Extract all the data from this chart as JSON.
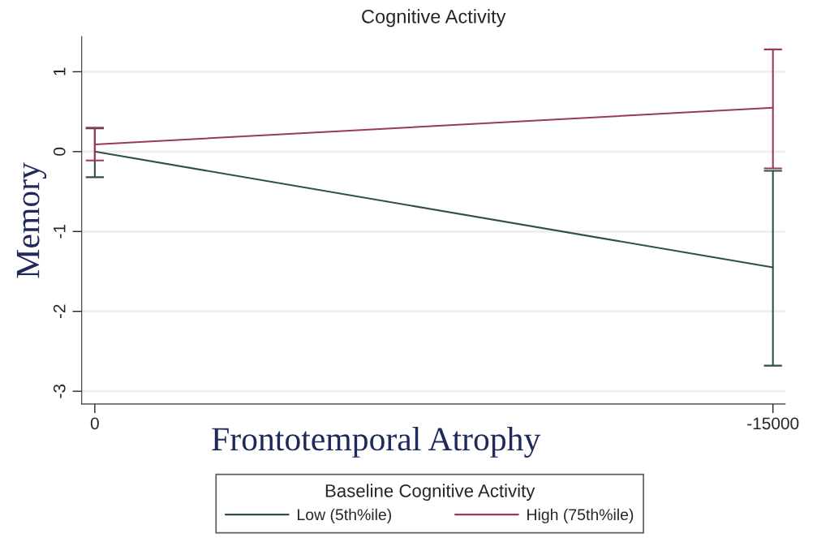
{
  "chart_data": {
    "type": "line",
    "title": "Cognitive Activity",
    "xlabel": "Frontotemporal Atrophy",
    "ylabel": "Memory",
    "legend_title": "Baseline Cognitive Activity",
    "x": [
      0,
      -15000
    ],
    "series": [
      {
        "name": "Low (5th%ile)",
        "color": "#2f4f4a",
        "values": [
          0,
          -1.45
        ],
        "errors": [
          [
            -0.32,
            0.29
          ],
          [
            -2.68,
            -0.24
          ]
        ]
      },
      {
        "name": "High (75th%ile)",
        "color": "#9b3a52",
        "values": [
          0.09,
          0.55
        ],
        "errors": [
          [
            -0.11,
            0.3
          ],
          [
            -0.21,
            1.28
          ]
        ]
      }
    ],
    "xlim": [
      290,
      -15270
    ],
    "xticks": [
      0,
      -15000
    ],
    "ylim": [
      -3.16,
      1.44
    ],
    "yticks": [
      -3,
      -2,
      -1,
      0,
      1
    ],
    "grid": "y",
    "legend": "bottom",
    "marker": "none",
    "line_style": "solid"
  }
}
